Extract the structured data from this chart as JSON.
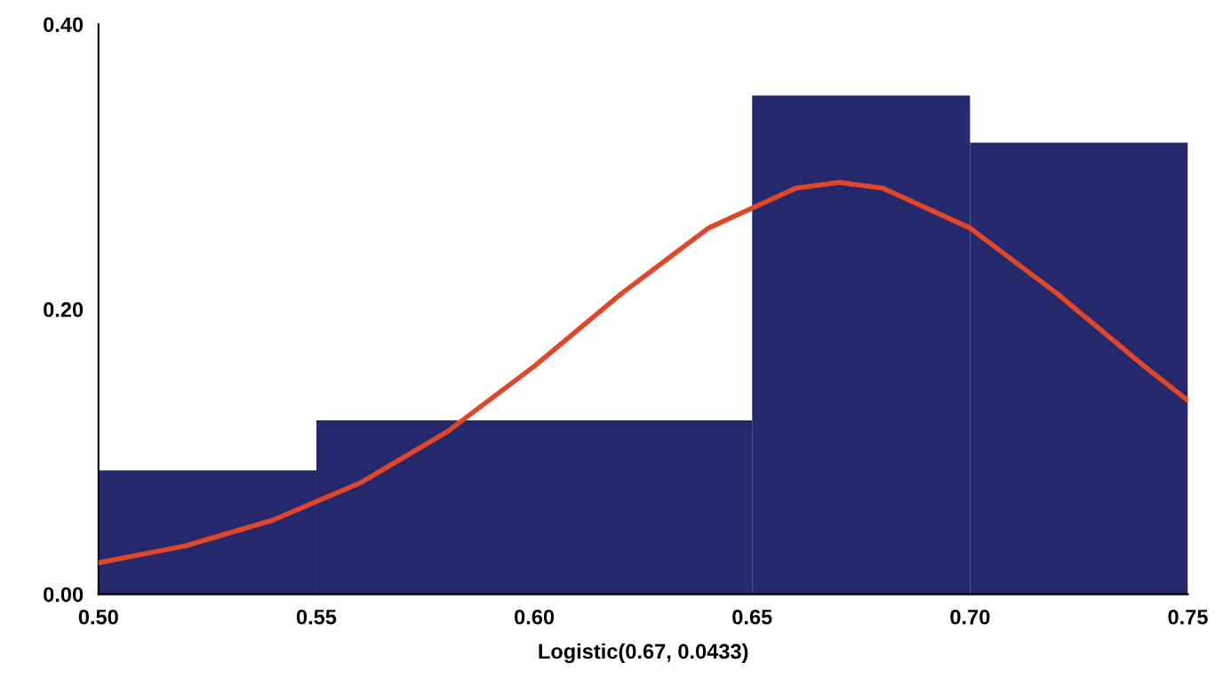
{
  "chart_data": {
    "type": "histogram",
    "xlabel": "Logistic(0.67, 0.0433)",
    "bins": [
      0.5,
      0.55,
      0.65,
      0.7,
      0.75
    ],
    "values": [
      0.087,
      0.122,
      0.35,
      0.317
    ],
    "color": "#25286a",
    "series": [
      {
        "type": "line",
        "color": "#e0472a",
        "x": [
          0.5,
          0.52,
          0.54,
          0.56,
          0.58,
          0.6,
          0.62,
          0.64,
          0.66,
          0.67,
          0.68,
          0.7,
          0.72,
          0.74,
          0.75
        ],
        "values": [
          0.022,
          0.034,
          0.052,
          0.078,
          0.114,
          0.16,
          0.211,
          0.257,
          0.285,
          0.289,
          0.285,
          0.257,
          0.211,
          0.16,
          0.136
        ]
      }
    ],
    "xlim": [
      0.5,
      0.75
    ],
    "ylim": [
      0,
      0.4
    ],
    "xticks": [
      {
        "value": 0.5,
        "label": "0.50"
      },
      {
        "value": 0.55,
        "label": "0.55"
      },
      {
        "value": 0.6,
        "label": "0.60"
      },
      {
        "value": 0.65,
        "label": "0.65"
      },
      {
        "value": 0.7,
        "label": "0.70"
      },
      {
        "value": 0.75,
        "label": "0.75"
      }
    ],
    "yticks": [
      {
        "value": 0,
        "label": "0.00"
      },
      {
        "value": 0.2,
        "label": "0.20"
      },
      {
        "value": 0.4,
        "label": "0.40"
      }
    ],
    "grid": false
  }
}
